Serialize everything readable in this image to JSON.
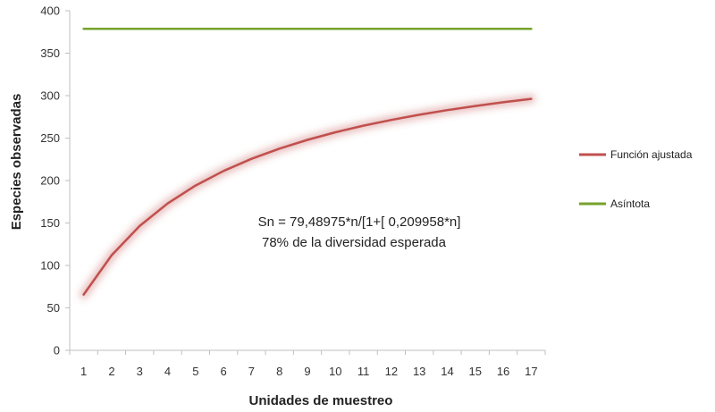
{
  "chart_data": {
    "type": "line",
    "xlabel": "Unidades de muestreo",
    "ylabel": "Especies observadas",
    "x": [
      1,
      2,
      3,
      4,
      5,
      6,
      7,
      8,
      9,
      10,
      11,
      12,
      13,
      14,
      15,
      16,
      17
    ],
    "xlim": [
      1,
      17
    ],
    "ylim": [
      0,
      400
    ],
    "yticks": [
      0,
      50,
      100,
      150,
      200,
      250,
      300,
      350,
      400
    ],
    "grid": false,
    "legend_position": "right",
    "series": [
      {
        "name": "Función ajustada",
        "color": "#c0504d",
        "values": [
          65.7,
          112.0,
          146.4,
          173.0,
          194.1,
          211.3,
          225.6,
          237.6,
          247.9,
          256.8,
          264.6,
          271.4,
          277.5,
          282.9,
          287.8,
          292.2,
          296.2
        ]
      },
      {
        "name": "Asíntota",
        "color": "#76a22c",
        "values": [
          378.7,
          378.7,
          378.7,
          378.7,
          378.7,
          378.7,
          378.7,
          378.7,
          378.7,
          378.7,
          378.7,
          378.7,
          378.7,
          378.7,
          378.7,
          378.7,
          378.7
        ]
      }
    ],
    "annotations": [
      "Sn = 79,48975*n/[1+[ 0,209958*n]",
      "78% de la diversidad esperada"
    ]
  }
}
